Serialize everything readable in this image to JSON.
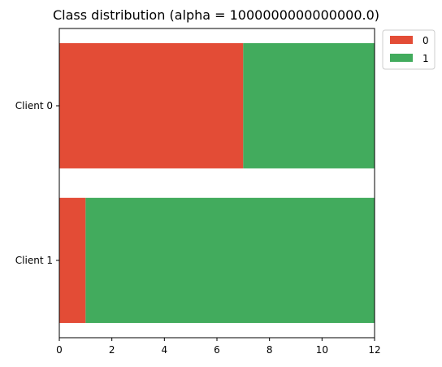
{
  "chart_data": {
    "type": "bar",
    "orientation": "horizontal",
    "stacked": true,
    "title": "Class distribution (alpha = 1000000000000000.0)",
    "xlabel": "",
    "ylabel": "",
    "categories": [
      "Client 0",
      "Client 1"
    ],
    "series": [
      {
        "name": "0",
        "color": "#e34c36",
        "values": [
          7,
          1
        ]
      },
      {
        "name": "1",
        "color": "#42ab5d",
        "values": [
          5,
          11
        ]
      }
    ],
    "xlim": [
      0,
      12
    ],
    "xticks": [
      "0",
      "2",
      "4",
      "6",
      "8",
      "10",
      "12"
    ],
    "legend": {
      "placement": "outside-upper-right",
      "entries": [
        "0",
        "1"
      ]
    },
    "grid": false
  }
}
